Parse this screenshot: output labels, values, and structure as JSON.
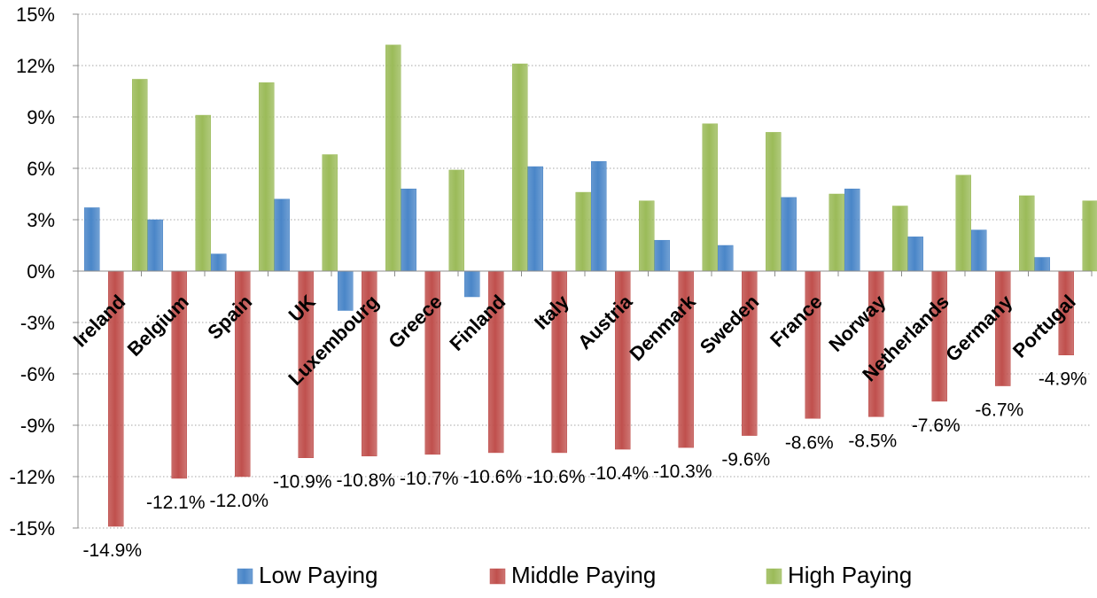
{
  "chart_data": {
    "type": "bar",
    "title": "",
    "xlabel": "",
    "ylabel": "",
    "ylim": [
      -15,
      15
    ],
    "y_ticks": [
      15,
      12,
      9,
      6,
      3,
      0,
      -3,
      -6,
      -9,
      -12,
      -15
    ],
    "y_tick_labels": [
      "15%",
      "12%",
      "9%",
      "6%",
      "3%",
      "0%",
      "-3%",
      "-6%",
      "-9%",
      "-12%",
      "-15%"
    ],
    "grid": true,
    "legend_position": "bottom",
    "categories": [
      "Ireland",
      "Belgium",
      "Spain",
      "UK",
      "Luxembourg",
      "Greece",
      "Finland",
      "Italy",
      "Austria",
      "Denmark",
      "Sweden",
      "France",
      "Norway",
      "Netherlands",
      "Germany",
      "Portugal"
    ],
    "series": [
      {
        "name": "Low Paying",
        "color": "#4a86c8",
        "values": [
          3.7,
          3.0,
          1.0,
          4.2,
          -2.3,
          4.8,
          -1.5,
          6.1,
          6.4,
          1.8,
          1.5,
          4.3,
          4.8,
          2.0,
          2.4,
          0.8
        ]
      },
      {
        "name": "Middle Paying",
        "color": "#c0504d",
        "values": [
          -14.9,
          -12.1,
          -12.0,
          -10.9,
          -10.8,
          -10.7,
          -10.6,
          -10.6,
          -10.4,
          -10.3,
          -9.6,
          -8.6,
          -8.5,
          -7.6,
          -6.7,
          -4.9
        ],
        "labels": [
          "-14.9%",
          "-12.1%",
          "-12.0%",
          "-10.9%",
          "-10.8%",
          "-10.7%",
          "-10.6%",
          "-10.6%",
          "-10.4%",
          "-10.3%",
          "-9.6%",
          "-8.6%",
          "-8.5%",
          "-7.6%",
          "-6.7%",
          "-4.9%"
        ]
      },
      {
        "name": "High Paying",
        "color": "#9bbb59",
        "values": [
          11.2,
          9.1,
          11.0,
          6.8,
          13.2,
          5.9,
          12.1,
          4.6,
          4.1,
          8.6,
          8.1,
          4.5,
          3.8,
          5.6,
          4.4,
          4.1
        ]
      }
    ]
  }
}
